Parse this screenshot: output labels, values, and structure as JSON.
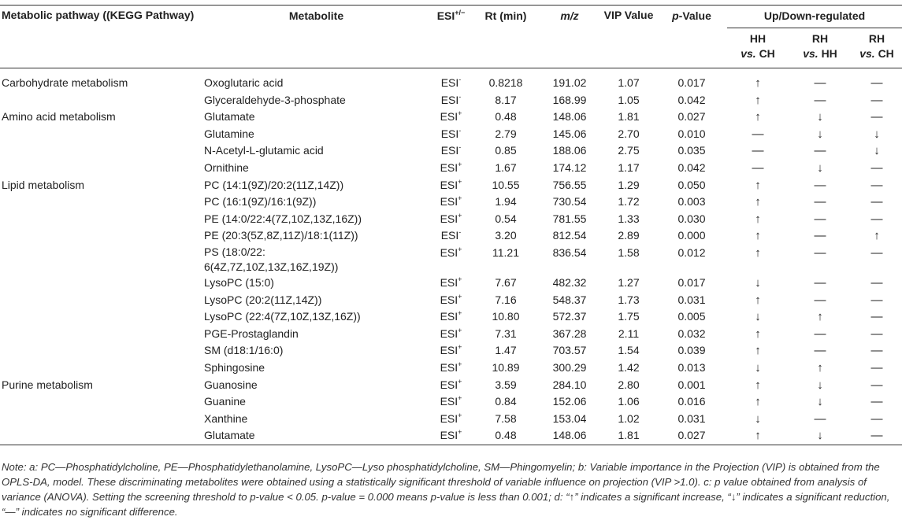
{
  "headers": {
    "pathway": "Metabolic pathway ((KEGG Pathway)",
    "metabolite": "Metabolite",
    "esi": "ESI",
    "esi_sup": "+/−",
    "rt": "Rt (min)",
    "mz": "m/z",
    "vip": "VIP Value",
    "p": "p",
    "p_suffix": "-Value",
    "updown": "Up/Down-regulated",
    "hh_ch_a": "HH",
    "hh_ch_b": "vs.",
    "hh_ch_c": "CH",
    "rh_hh_a": "RH",
    "rh_hh_b": "vs.",
    "rh_hh_c": "HH",
    "rh_ch_a": "RH",
    "rh_ch_b": "vs.",
    "rh_ch_c": "CH"
  },
  "rows": [
    {
      "pathway": "Carbohydrate metabolism",
      "metabolite": "Oxoglutaric acid",
      "esi": "ESI",
      "sign": "-",
      "rt": "0.8218",
      "mz": "191.02",
      "vip": "1.07",
      "p": "0.017",
      "hh_ch": "↑",
      "rh_hh": "—",
      "rh_ch": "—"
    },
    {
      "pathway": "",
      "metabolite": "Glyceraldehyde-3-phosphate",
      "esi": "ESI",
      "sign": "-",
      "rt": "8.17",
      "mz": "168.99",
      "vip": "1.05",
      "p": "0.042",
      "hh_ch": "↑",
      "rh_hh": "—",
      "rh_ch": "—"
    },
    {
      "pathway": "Amino acid metabolism",
      "metabolite": "Glutamate",
      "esi": "ESI",
      "sign": "+",
      "rt": "0.48",
      "mz": "148.06",
      "vip": "1.81",
      "p": "0.027",
      "hh_ch": "↑",
      "rh_hh": "↓",
      "rh_ch": "—"
    },
    {
      "pathway": "",
      "metabolite": "Glutamine",
      "esi": "ESI",
      "sign": "-",
      "rt": "2.79",
      "mz": "145.06",
      "vip": "2.70",
      "p": "0.010",
      "hh_ch": "—",
      "rh_hh": "↓",
      "rh_ch": "↓"
    },
    {
      "pathway": "",
      "metabolite": "N-Acetyl-L-glutamic acid",
      "esi": "ESI",
      "sign": "-",
      "rt": "0.85",
      "mz": "188.06",
      "vip": "2.75",
      "p": "0.035",
      "hh_ch": "—",
      "rh_hh": "—",
      "rh_ch": "↓"
    },
    {
      "pathway": "",
      "metabolite": "Ornithine",
      "esi": "ESI",
      "sign": "+",
      "rt": "1.67",
      "mz": "174.12",
      "vip": "1.17",
      "p": "0.042",
      "hh_ch": "—",
      "rh_hh": "↓",
      "rh_ch": "—"
    },
    {
      "pathway": "Lipid metabolism",
      "metabolite": "PC (14:1(9Z)/20:2(11Z,14Z))",
      "esi": "ESI",
      "sign": "+",
      "rt": "10.55",
      "mz": "756.55",
      "vip": "1.29",
      "p": "0.050",
      "hh_ch": "↑",
      "rh_hh": "—",
      "rh_ch": "—"
    },
    {
      "pathway": "",
      "metabolite": "PC (16:1(9Z)/16:1(9Z))",
      "esi": "ESI",
      "sign": "+",
      "rt": "1.94",
      "mz": "730.54",
      "vip": "1.72",
      "p": "0.003",
      "hh_ch": "↑",
      "rh_hh": "—",
      "rh_ch": "—"
    },
    {
      "pathway": "",
      "metabolite": "PE (14:0/22:4(7Z,10Z,13Z,16Z))",
      "esi": "ESI",
      "sign": "+",
      "rt": "0.54",
      "mz": "781.55",
      "vip": "1.33",
      "p": "0.030",
      "hh_ch": "↑",
      "rh_hh": "—",
      "rh_ch": "—"
    },
    {
      "pathway": "",
      "metabolite": "PE (20:3(5Z,8Z,11Z)/18:1(11Z))",
      "esi": "ESI",
      "sign": "-",
      "rt": "3.20",
      "mz": "812.54",
      "vip": "2.89",
      "p": "0.000",
      "hh_ch": "↑",
      "rh_hh": "—",
      "rh_ch": "↑"
    },
    {
      "pathway": "",
      "metabolite": "PS (18:0/22:",
      "metabolite2": "6(4Z,7Z,10Z,13Z,16Z,19Z))",
      "esi": "ESI",
      "sign": "+",
      "rt": "11.21",
      "mz": "836.54",
      "vip": "1.58",
      "p": "0.012",
      "hh_ch": "↑",
      "rh_hh": "—",
      "rh_ch": "—"
    },
    {
      "pathway": "",
      "metabolite": "LysoPC (15:0)",
      "esi": "ESI",
      "sign": "+",
      "rt": "7.67",
      "mz": "482.32",
      "vip": "1.27",
      "p": "0.017",
      "hh_ch": "↓",
      "rh_hh": "—",
      "rh_ch": "—"
    },
    {
      "pathway": "",
      "metabolite": "LysoPC (20:2(11Z,14Z))",
      "esi": "ESI",
      "sign": "+",
      "rt": "7.16",
      "mz": "548.37",
      "vip": "1.73",
      "p": "0.031",
      "hh_ch": "↑",
      "rh_hh": "—",
      "rh_ch": "—"
    },
    {
      "pathway": "",
      "metabolite": "LysoPC (22:4(7Z,10Z,13Z,16Z))",
      "esi": "ESI",
      "sign": "+",
      "rt": "10.80",
      "mz": "572.37",
      "vip": "1.75",
      "p": "0.005",
      "hh_ch": "↓",
      "rh_hh": "↑",
      "rh_ch": "—"
    },
    {
      "pathway": "",
      "metabolite": "PGE-Prostaglandin",
      "esi": "ESI",
      "sign": "+",
      "rt": "7.31",
      "mz": "367.28",
      "vip": "2.11",
      "p": "0.032",
      "hh_ch": "↑",
      "rh_hh": "—",
      "rh_ch": "—"
    },
    {
      "pathway": "",
      "metabolite": "SM (d18:1/16:0)",
      "esi": "ESI",
      "sign": "+",
      "rt": "1.47",
      "mz": "703.57",
      "vip": "1.54",
      "p": "0.039",
      "hh_ch": "↑",
      "rh_hh": "—",
      "rh_ch": "—"
    },
    {
      "pathway": "",
      "metabolite": "Sphingosine",
      "esi": "ESI",
      "sign": "+",
      "rt": "10.89",
      "mz": "300.29",
      "vip": "1.42",
      "p": "0.013",
      "hh_ch": "↓",
      "rh_hh": "↑",
      "rh_ch": "—"
    },
    {
      "pathway": "Purine metabolism",
      "metabolite": "Guanosine",
      "esi": "ESI",
      "sign": "+",
      "rt": "3.59",
      "mz": "284.10",
      "vip": "2.80",
      "p": "0.001",
      "hh_ch": "↑",
      "rh_hh": "↓",
      "rh_ch": "—"
    },
    {
      "pathway": "",
      "metabolite": "Guanine",
      "esi": "ESI",
      "sign": "+",
      "rt": "0.84",
      "mz": "152.06",
      "vip": "1.06",
      "p": "0.016",
      "hh_ch": "↑",
      "rh_hh": "↓",
      "rh_ch": "—"
    },
    {
      "pathway": "",
      "metabolite": "Xanthine",
      "esi": "ESI",
      "sign": "+",
      "rt": "7.58",
      "mz": "153.04",
      "vip": "1.02",
      "p": "0.031",
      "hh_ch": "↓",
      "rh_hh": "—",
      "rh_ch": "—"
    },
    {
      "pathway": "",
      "metabolite": "Glutamate",
      "esi": "ESI",
      "sign": "+",
      "rt": "0.48",
      "mz": "148.06",
      "vip": "1.81",
      "p": "0.027",
      "hh_ch": "↑",
      "rh_hh": "↓",
      "rh_ch": "—"
    }
  ],
  "note": "Note: a: PC—Phosphatidylcholine, PE—Phosphatidylethanolamine, LysoPC—Lyso phosphatidylcholine, SM—Phingomyelin; b: Variable importance in the Projection (VIP) is obtained from the OPLS-DA, model. These discriminating metabolites were obtained using a statistically significant threshold of variable influence on projection (VIP >1.0). c: p value obtained from analysis of variance (ANOVA). Setting the screening threshold to p-value < 0.05. p-value = 0.000 means p-value is less than 0.001; d: “↑” indicates a significant increase, “↓” indicates a significant reduction, “—” indicates no significant difference."
}
